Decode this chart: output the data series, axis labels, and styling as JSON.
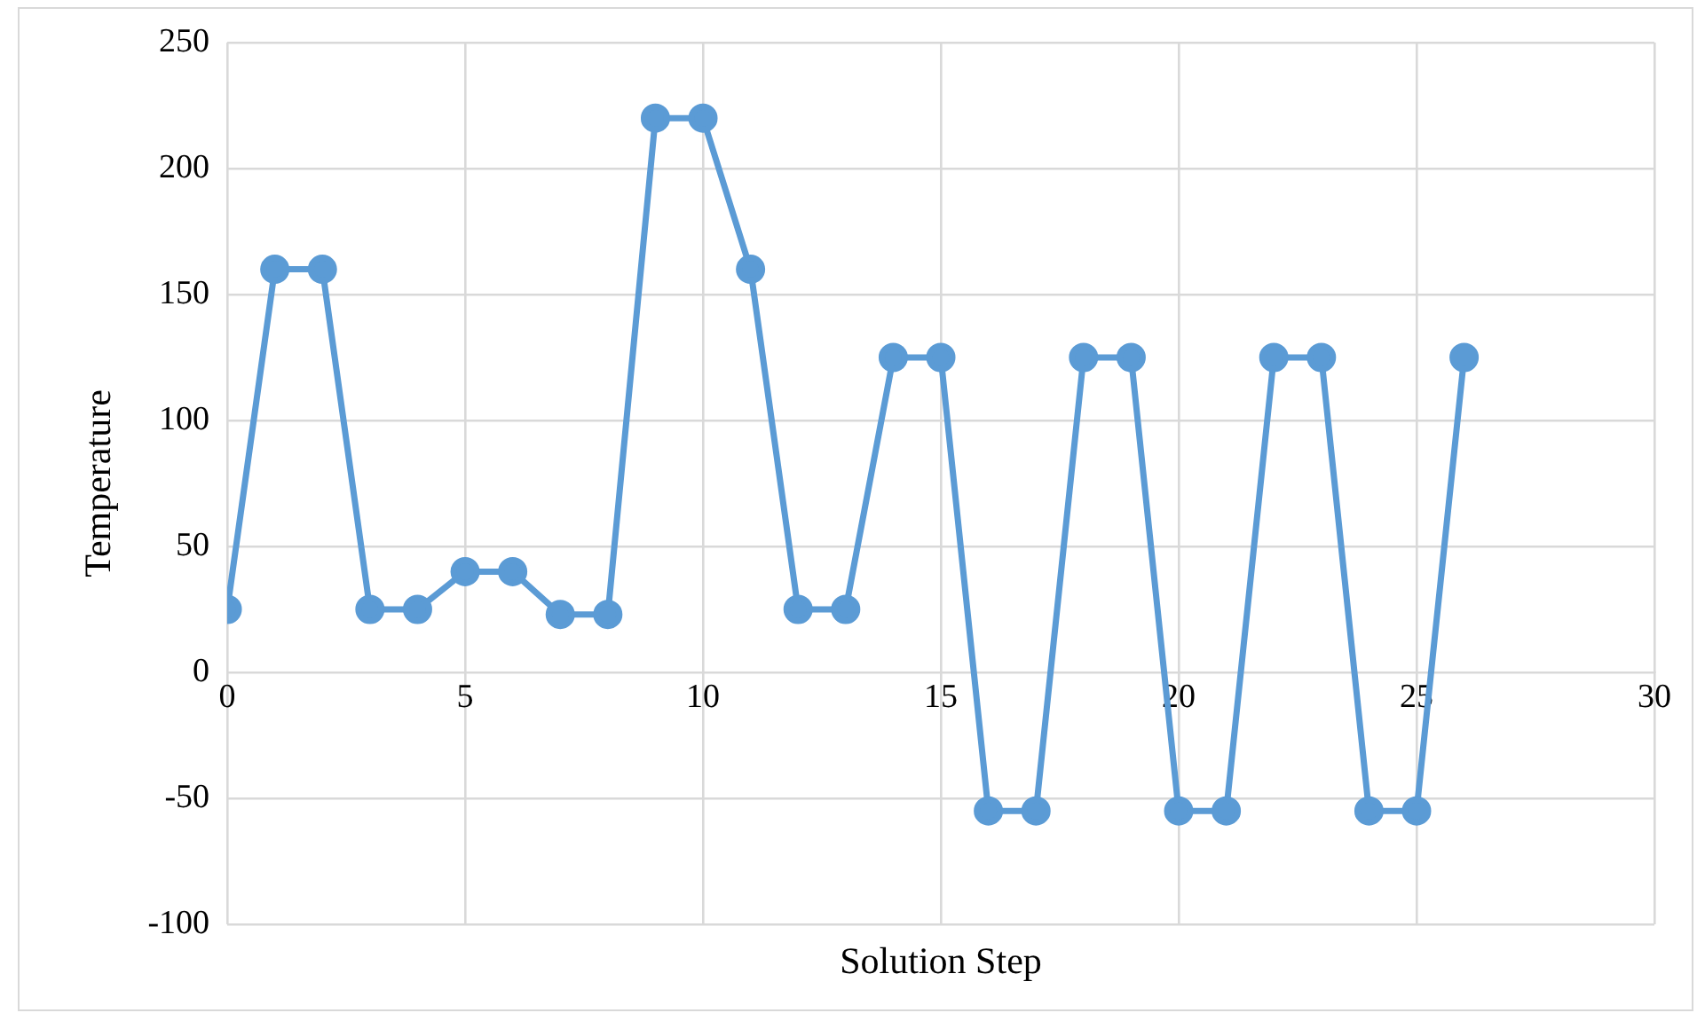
{
  "chart_data": {
    "type": "line",
    "xlabel": "Solution Step",
    "ylabel": "Temperature",
    "x": [
      0,
      1,
      2,
      3,
      4,
      5,
      6,
      7,
      8,
      9,
      10,
      11,
      12,
      13,
      14,
      15,
      16,
      17,
      18,
      19,
      20,
      21,
      22,
      23,
      24,
      25,
      26
    ],
    "series": [
      {
        "color": "#5b9bd5",
        "values": [
          25,
          160,
          160,
          25,
          25,
          40,
          40,
          23,
          23,
          220,
          220,
          160,
          25,
          25,
          125,
          125,
          -55,
          -55,
          125,
          125,
          -55,
          -55,
          125,
          125,
          -55,
          -55,
          125
        ]
      }
    ],
    "xlim": [
      0,
      30
    ],
    "xticks": [
      0,
      5,
      10,
      15,
      20,
      25,
      30
    ],
    "ylim": [
      -100,
      250
    ],
    "yticks": [
      -100,
      -50,
      0,
      50,
      100,
      150,
      200,
      250
    ],
    "grid": true,
    "legend": false,
    "marker": "circle",
    "line_style": "solid"
  }
}
